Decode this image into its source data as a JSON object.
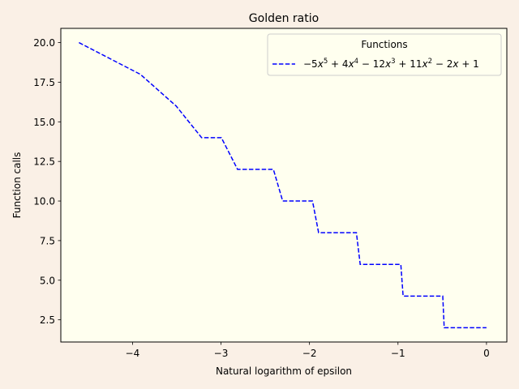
{
  "chart_data": {
    "type": "line",
    "title": "Golden ratio",
    "xlabel": "Natural logarithm of epsilon",
    "ylabel": "Function calls",
    "xlim": [
      -4.81,
      0.23
    ],
    "ylim": [
      1.1,
      20.9
    ],
    "xticks": [
      -4,
      -3,
      -2,
      -1,
      0
    ],
    "xtick_labels": [
      "−4",
      "−3",
      "−2",
      "−1",
      "0"
    ],
    "yticks": [
      2.5,
      5.0,
      7.5,
      10.0,
      12.5,
      15.0,
      17.5,
      20.0
    ],
    "ytick_labels": [
      "2.5",
      "5.0",
      "7.5",
      "10.0",
      "12.5",
      "15.0",
      "17.5",
      "20.0"
    ],
    "grid": false,
    "legend": {
      "title": "Functions",
      "placement": "upper right"
    },
    "series": [
      {
        "name": "−5x5 + 4x4 − 12x3 + 11x2 − 2x + 1",
        "color": "#0000ff",
        "linestyle": "dashed",
        "x": [
          -4.605,
          -3.912,
          -3.507,
          -3.219,
          -2.996,
          -2.813,
          -2.408,
          -2.303,
          -1.966,
          -1.897,
          -1.47,
          -1.427,
          -0.968,
          -0.942,
          -0.494,
          -0.478,
          0.0
        ],
        "y": [
          20,
          18,
          16,
          14,
          14,
          12,
          12,
          10,
          10,
          8,
          8,
          6,
          6,
          4,
          4,
          2,
          2
        ]
      }
    ]
  }
}
